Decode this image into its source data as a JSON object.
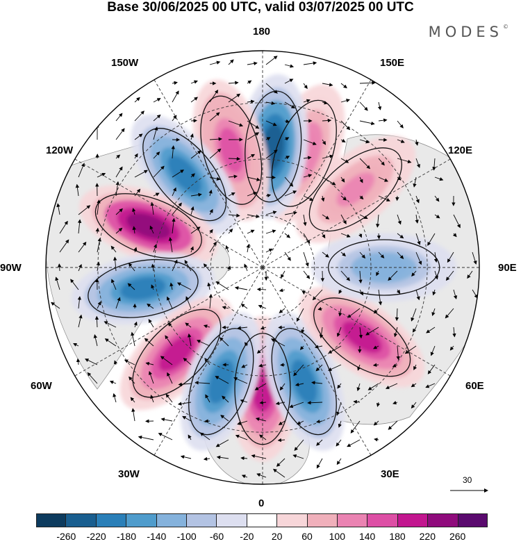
{
  "header": {
    "title": "Base 30/06/2025 00 UTC, valid 03/07/2025 00 UTC",
    "brand": "MODES",
    "brand_mark": "©"
  },
  "map": {
    "projection": "north-polar-stereographic",
    "longitude_labels": {
      "top": "180",
      "top_left": "150W",
      "top_right": "150E",
      "upper_left": "120W",
      "upper_right": "120E",
      "left": "90W",
      "right": "90E",
      "lower_left": "60W",
      "lower_right": "60E",
      "bottom_left": "30W",
      "bottom_right": "30E",
      "bottom": "0"
    },
    "reference_vector": "30",
    "anomaly_centers": [
      {
        "lon": 0,
        "sign": "positive",
        "strength": 200
      },
      {
        "lon": 20,
        "sign": "negative",
        "strength": 200
      },
      {
        "lon": 55,
        "sign": "positive",
        "strength": 200
      },
      {
        "lon": 90,
        "sign": "negative",
        "strength": 120
      },
      {
        "lon": 130,
        "sign": "positive",
        "strength": 100
      },
      {
        "lon": 160,
        "sign": "positive",
        "strength": 120
      },
      {
        "lon": 175,
        "sign": "negative",
        "strength": 220
      },
      {
        "lon": -165,
        "sign": "positive",
        "strength": 140
      },
      {
        "lon": -140,
        "sign": "negative",
        "strength": 180
      },
      {
        "lon": -110,
        "sign": "positive",
        "strength": 220
      },
      {
        "lon": -80,
        "sign": "negative",
        "strength": 180
      },
      {
        "lon": -45,
        "sign": "positive",
        "strength": 200
      },
      {
        "lon": -20,
        "sign": "negative",
        "strength": 180
      }
    ]
  },
  "colorbar": {
    "ticks": [
      "-260",
      "-220",
      "-180",
      "-140",
      "-100",
      "-60",
      "-20",
      "20",
      "60",
      "100",
      "140",
      "180",
      "220",
      "260"
    ],
    "colors": [
      "#0d3b5e",
      "#195e8f",
      "#2a7fb8",
      "#4f9ccc",
      "#85b2dc",
      "#b3c3e3",
      "#dddff0",
      "#ffffff",
      "#f7d6d9",
      "#f0b0bb",
      "#ea83b2",
      "#dd4fa5",
      "#c2168f",
      "#8f0b7c",
      "#5a0a6e"
    ]
  }
}
